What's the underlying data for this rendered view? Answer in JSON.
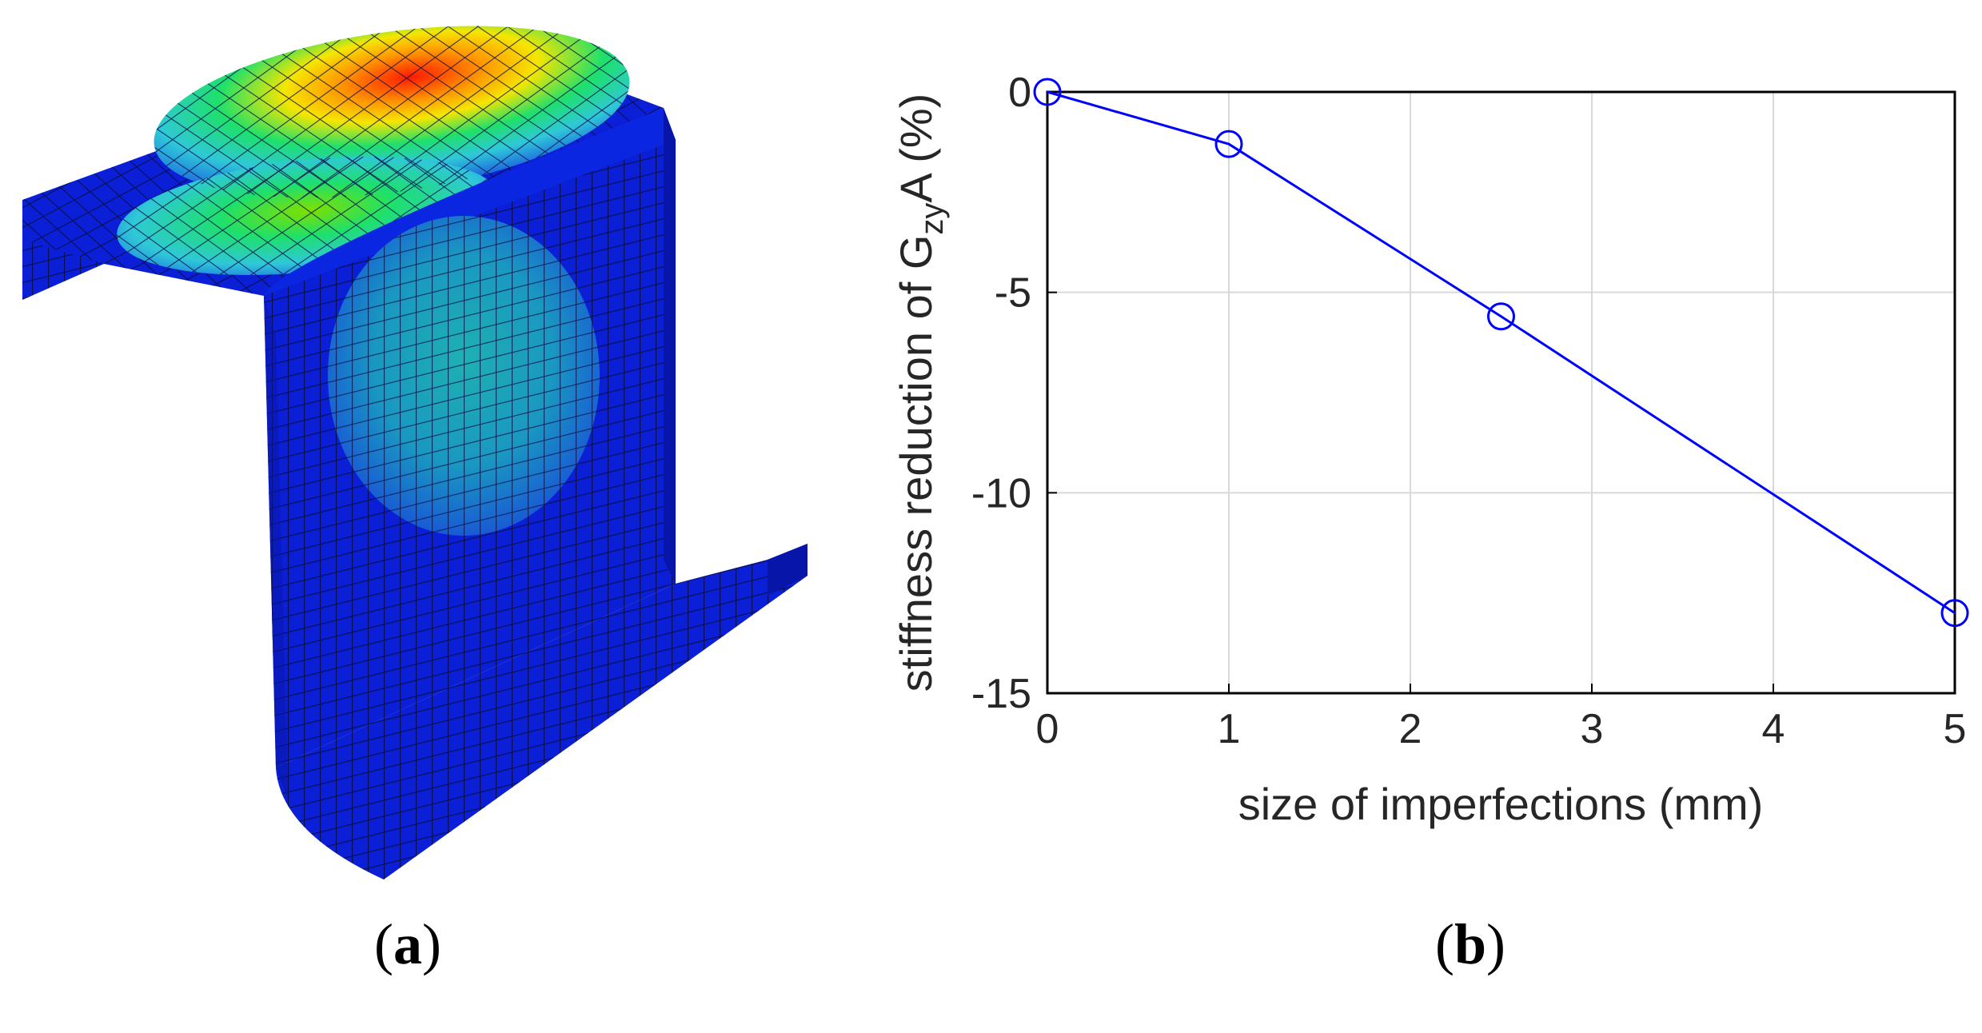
{
  "panels": {
    "a": {
      "open": "(",
      "letter": "a",
      "close": ")"
    },
    "b": {
      "open": "(",
      "letter": "b",
      "close": ")"
    }
  },
  "fe_model": {
    "description_colors": {
      "base": "#0a1fd6",
      "mesh": "#0a0f4a",
      "contour_high": "#ff1a00",
      "contour_mid": "#f5e600",
      "contour_low": "#1ee06b",
      "contour_cyan": "#2fc8d8"
    }
  },
  "chart_data": {
    "type": "line",
    "x": [
      0,
      1,
      2.5,
      5
    ],
    "y": [
      0,
      -1.3,
      -5.6,
      -13.0
    ],
    "xlim": [
      0,
      5
    ],
    "ylim": [
      -15,
      0
    ],
    "xticks": [
      "0",
      "1",
      "2",
      "3",
      "4",
      "5"
    ],
    "yticks": [
      "0",
      "-5",
      "-10",
      "-15"
    ],
    "xlabel": "size of imperfections (mm)",
    "ylabel_prefix": "stiffness reduction of G",
    "ylabel_sub": "zy",
    "ylabel_suffix": "A  (%)",
    "grid": true,
    "marker": "circle",
    "line_color": "#0000ff"
  }
}
